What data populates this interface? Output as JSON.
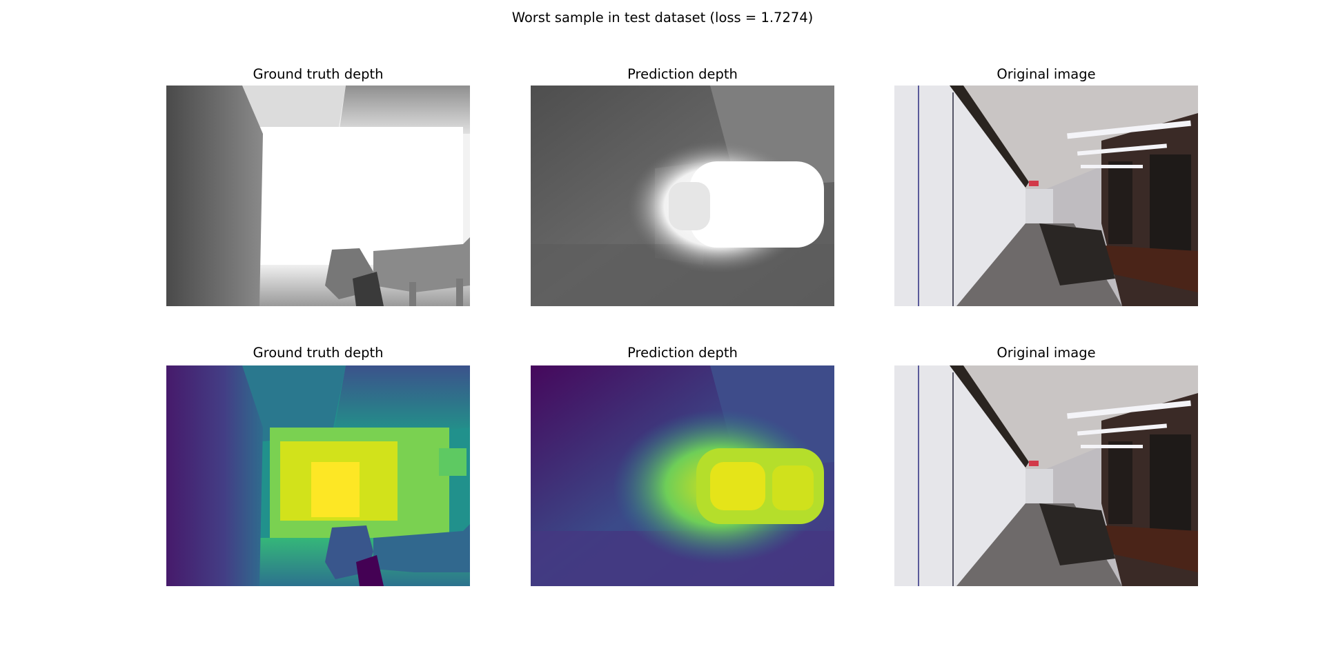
{
  "figure": {
    "title": "Worst sample in test dataset (loss = 1.7274)"
  },
  "panels": [
    {
      "title": "Ground truth depth",
      "colormap": "gray",
      "content": "ground-truth"
    },
    {
      "title": "Prediction depth",
      "colormap": "gray",
      "content": "prediction"
    },
    {
      "title": "Original image",
      "colormap": "rgb",
      "content": "original"
    },
    {
      "title": "Ground truth depth",
      "colormap": "viridis",
      "content": "ground-truth"
    },
    {
      "title": "Prediction depth",
      "colormap": "viridis",
      "content": "prediction"
    },
    {
      "title": "Original image",
      "colormap": "rgb",
      "content": "original"
    }
  ],
  "colors": {
    "gray_low": "#444444",
    "gray_high": "#ffffff",
    "viridis_low": "#440154",
    "viridis_mid": "#21918c",
    "viridis_high": "#fde725"
  }
}
